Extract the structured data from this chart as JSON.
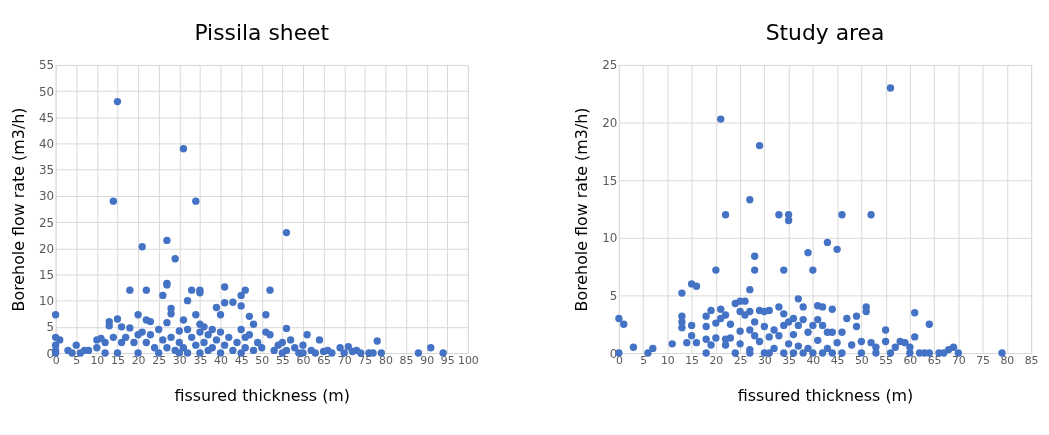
{
  "chart_data": [
    {
      "type": "scatter",
      "title": "Pissila sheet",
      "xlabel": "fissured thickness (m)",
      "ylabel": "Borehole flow rate (m3/h)",
      "xlim": [
        0,
        100
      ],
      "xticks": [
        0,
        5,
        10,
        15,
        20,
        25,
        30,
        35,
        40,
        45,
        50,
        55,
        60,
        65,
        70,
        75,
        80,
        85,
        90,
        95,
        100
      ],
      "ylim": [
        0,
        55
      ],
      "yticks": [
        0,
        5,
        10,
        15,
        20,
        25,
        30,
        35,
        40,
        45,
        50,
        55
      ],
      "grid": true,
      "marker": "circle",
      "series": [
        {
          "color": "#4472c4",
          "x": [
            15,
            31,
            14,
            34,
            56,
            27,
            21,
            29,
            27,
            27,
            18,
            22,
            33,
            35,
            35,
            52,
            41,
            46,
            32,
            26,
            45,
            43,
            41,
            45,
            39,
            28,
            28,
            0,
            20,
            34,
            40,
            47,
            51,
            15,
            13,
            22,
            23,
            31,
            48,
            56,
            13,
            16,
            18,
            27,
            35,
            61,
            64,
            78,
            91,
            88,
            94,
            79,
            76,
            77,
            73,
            71,
            69,
            66,
            0,
            1,
            0,
            0,
            0,
            3,
            5,
            4,
            6,
            7,
            8,
            10,
            11,
            12,
            10,
            12,
            14,
            16,
            17,
            19,
            20,
            21,
            22,
            23,
            24,
            25,
            25,
            26,
            27,
            28,
            29,
            30,
            30,
            31,
            32,
            32,
            33,
            34,
            35,
            36,
            36,
            37,
            37,
            38,
            38,
            39,
            40,
            40,
            41,
            42,
            43,
            44,
            45,
            46,
            46,
            47,
            48,
            49,
            50,
            51,
            52,
            53,
            54,
            55,
            56,
            57,
            58,
            59,
            60,
            62,
            63,
            65,
            67,
            70,
            72,
            74,
            55,
            45,
            35,
            30,
            20,
            15,
            60
          ],
          "values": [
            48,
            39,
            29,
            29,
            23,
            21.5,
            20.3,
            18,
            13.3,
            13,
            12,
            12,
            12,
            12,
            11.5,
            12,
            12.6,
            12,
            10,
            11,
            11,
            9.7,
            9.6,
            9,
            8.7,
            8.5,
            7.5,
            7.3,
            7.3,
            7.3,
            7.3,
            7,
            7.3,
            6.5,
            6,
            6.3,
            6,
            6.3,
            5.5,
            4.7,
            5.2,
            5,
            4.8,
            5.8,
            5.5,
            3.5,
            2.5,
            2.3,
            1,
            0,
            0,
            0,
            0,
            0,
            0.5,
            1.2,
            1,
            0.5,
            3,
            2.5,
            1.5,
            0.5,
            0,
            0.5,
            1.5,
            0,
            0,
            0.5,
            0.5,
            2.5,
            2.8,
            2,
            1,
            0,
            3,
            2,
            3,
            2,
            3.5,
            4,
            2,
            3.5,
            1,
            4.5,
            0,
            2.5,
            1,
            3,
            0.5,
            4.2,
            2,
            1,
            4.5,
            0,
            3,
            1.5,
            4,
            5,
            2,
            0.5,
            3.5,
            1,
            4.5,
            2.5,
            0,
            4,
            1.5,
            3,
            0.5,
            2,
            4.5,
            1,
            3,
            3.5,
            0.5,
            2,
            1,
            4,
            3.5,
            0.5,
            1.5,
            2,
            0.5,
            2.5,
            1,
            0,
            1.5,
            0.5,
            0,
            0.3,
            0,
            0,
            0.3,
            0,
            0,
            0,
            0,
            0,
            0,
            0,
            0
          ]
        }
      ]
    },
    {
      "type": "scatter",
      "title": "Study area",
      "xlabel": "fissured thickness (m)",
      "ylabel": "Borehole flow rate (m3/h)",
      "xlim": [
        0,
        85
      ],
      "xticks": [
        0,
        5,
        10,
        15,
        20,
        25,
        30,
        35,
        40,
        45,
        50,
        55,
        60,
        65,
        70,
        75,
        80,
        85
      ],
      "ylim": [
        0,
        25
      ],
      "yticks": [
        0,
        5,
        10,
        15,
        20,
        25
      ],
      "grid": true,
      "marker": "circle",
      "series": [
        {
          "color": "#4472c4",
          "x": [
            56,
            21,
            29,
            27,
            22,
            33,
            35,
            35,
            46,
            52,
            43,
            45,
            39,
            28,
            20,
            28,
            34,
            40,
            15,
            16,
            27,
            13,
            37,
            24,
            25,
            26,
            33,
            38,
            41,
            42,
            44,
            51,
            51,
            0,
            1,
            3,
            0,
            6,
            7,
            11,
            13,
            13,
            13,
            14,
            15,
            15,
            16,
            18,
            18,
            18,
            18,
            19,
            19,
            20,
            20,
            21,
            21,
            22,
            22,
            22,
            23,
            23,
            24,
            25,
            25,
            25,
            26,
            27,
            27,
            27,
            27,
            28,
            28,
            29,
            29,
            30,
            30,
            30,
            31,
            31,
            31,
            32,
            32,
            33,
            34,
            34,
            34,
            35,
            35,
            36,
            36,
            36,
            37,
            37,
            38,
            38,
            39,
            39,
            40,
            40,
            41,
            41,
            42,
            42,
            43,
            43,
            44,
            44,
            45,
            46,
            46,
            47,
            48,
            49,
            49,
            50,
            50,
            52,
            53,
            53,
            55,
            55,
            56,
            57,
            58,
            59,
            60,
            60,
            61,
            61,
            62,
            63,
            64,
            64,
            66,
            67,
            68,
            69,
            70,
            79
          ],
          "values": [
            23,
            20.3,
            18,
            13.3,
            12,
            12,
            12,
            11.5,
            12,
            12,
            9.6,
            9,
            8.7,
            8.4,
            7.2,
            7.2,
            7.2,
            7.2,
            6,
            5.8,
            5.5,
            5.2,
            4.7,
            4.3,
            4.5,
            4.5,
            4,
            4,
            4.1,
            4,
            3.8,
            4,
            3.6,
            3,
            2.5,
            0.5,
            0,
            0,
            0.4,
            0.8,
            3.2,
            2.7,
            2.2,
            0.9,
            2.4,
            1.5,
            0.9,
            3.2,
            2.3,
            1.2,
            0,
            3.7,
            0.7,
            2.6,
            1.3,
            3.8,
            3,
            3.3,
            0.7,
            1.2,
            2.5,
            1.3,
            0,
            3.6,
            1.9,
            0.8,
            3.3,
            3.6,
            2,
            0.3,
            0,
            2.7,
            1.5,
            3.7,
            1,
            3.6,
            2.3,
            0,
            3.7,
            1.4,
            0,
            2,
            0.4,
            1.5,
            3.4,
            2.4,
            0,
            2.7,
            0.8,
            3,
            1.6,
            0,
            2.4,
            0.6,
            2.9,
            0,
            1.8,
            0.4,
            2.4,
            0,
            2.9,
            1.1,
            2.4,
            0,
            1.8,
            0.4,
            0,
            1.8,
            0.9,
            1.8,
            0,
            3,
            0.7,
            3.2,
            2.3,
            1,
            0,
            0.9,
            0.5,
            0,
            2,
            1,
            0,
            0.5,
            1,
            0.9,
            0.5,
            0,
            3.5,
            1.4,
            0,
            0,
            2.5,
            0,
            0,
            0,
            0.3,
            0.5,
            0,
            0
          ]
        }
      ]
    }
  ]
}
